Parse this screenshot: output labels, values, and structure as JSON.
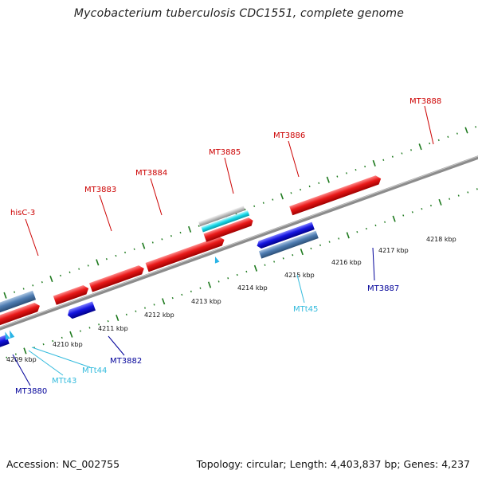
{
  "title": "Mycobacterium tuberculosis CDC1551, complete genome",
  "accession": "Accession: NC_002755",
  "topology": "Topology: circular; Length: 4,403,837 bp; Genes: 4,237",
  "colors": {
    "red_gene": "#e01010",
    "blue_gene": "#1010d0",
    "steel_gene": "#4a7ab0",
    "cyan_gene": "#18d8e8",
    "gray_gene": "#b8b8b8",
    "backbone": "#808080",
    "tick": "#1e7a1e",
    "label_red": "#cc0000",
    "label_blue": "#000099",
    "label_cyan": "#33bbdd"
  },
  "ticks": [
    "4209 kbp",
    "4210 kbp",
    "4211 kbp",
    "4212 kbp",
    "4213 kbp",
    "4214 kbp",
    "4215 kbp",
    "4216 kbp",
    "4217 kbp",
    "4218 kbp"
  ],
  "gene_labels": [
    {
      "text": "hisC-3",
      "color": "red"
    },
    {
      "text": "MT3883",
      "color": "red"
    },
    {
      "text": "MT3884",
      "color": "red"
    },
    {
      "text": "MT3885",
      "color": "red"
    },
    {
      "text": "MT3886",
      "color": "red"
    },
    {
      "text": "MT3888",
      "color": "red"
    },
    {
      "text": "MT3887",
      "color": "blue"
    },
    {
      "text": "MT3882",
      "color": "blue"
    },
    {
      "text": "MT3880",
      "color": "blue"
    },
    {
      "text": "MTt45",
      "color": "cyan"
    },
    {
      "text": "MTt44",
      "color": "cyan"
    },
    {
      "text": "MTt43",
      "color": "cyan"
    }
  ]
}
